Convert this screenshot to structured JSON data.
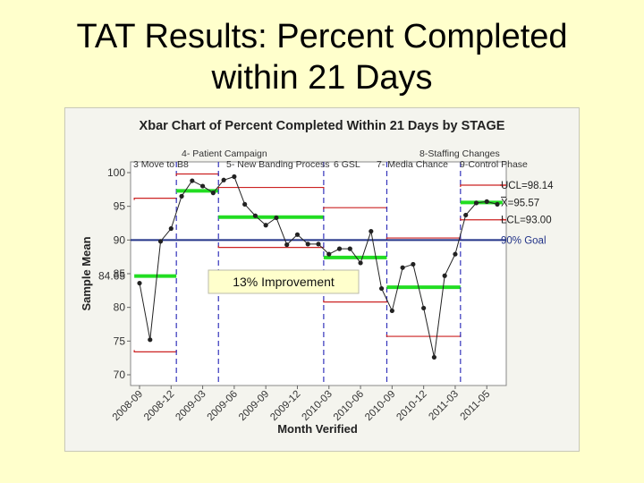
{
  "slide": {
    "title_line1": "TAT Results: Percent Completed",
    "title_line2": "within 21 Days"
  },
  "chart_data": {
    "type": "line",
    "title": "Xbar Chart of Percent Completed Within 21 Days by STAGE",
    "xlabel": "Month Verified",
    "ylabel": "Sample Mean",
    "ylim": [
      70,
      100
    ],
    "yticks": [
      70,
      75,
      80,
      85,
      90,
      95,
      100
    ],
    "xticks": [
      "2008-09",
      "2008-12",
      "2009-03",
      "2009-06",
      "2009-09",
      "2009-12",
      "2010-03",
      "2010-06",
      "2010-09",
      "2010-12",
      "2011-03",
      "2011-05"
    ],
    "series": [
      {
        "values": [
          [
            "2008-09",
            83.6
          ],
          [
            "2008-10",
            75.2
          ],
          [
            "2008-11",
            89.8
          ],
          [
            "2008-12",
            91.7
          ],
          [
            "2009-01",
            96.5
          ],
          [
            "2009-02",
            98.8
          ],
          [
            "2009-03",
            98.0
          ],
          [
            "2009-04",
            97.0
          ],
          [
            "2009-05",
            98.9
          ],
          [
            "2009-06",
            99.4
          ],
          [
            "2009-07",
            95.3
          ],
          [
            "2009-08",
            93.6
          ],
          [
            "2009-09",
            92.2
          ],
          [
            "2009-10",
            93.3
          ],
          [
            "2009-11",
            89.3
          ],
          [
            "2009-12",
            90.8
          ],
          [
            "2010-01",
            89.4
          ],
          [
            "2010-02",
            89.4
          ],
          [
            "2010-03",
            87.9
          ],
          [
            "2010-04",
            88.7
          ],
          [
            "2010-05",
            88.7
          ],
          [
            "2010-06",
            86.6
          ],
          [
            "2010-07",
            91.3
          ],
          [
            "2010-08",
            82.8
          ],
          [
            "2010-09",
            79.5
          ],
          [
            "2010-10",
            85.9
          ],
          [
            "2010-11",
            86.4
          ],
          [
            "2010-12",
            79.9
          ],
          [
            "2011-01",
            72.6
          ],
          [
            "2011-02",
            84.7
          ],
          [
            "2011-03",
            87.9
          ],
          [
            "2011-04",
            93.7
          ],
          [
            "2011-05",
            95.5
          ],
          [
            "2011-06",
            95.7
          ],
          [
            "2011-07",
            95.3
          ]
        ]
      }
    ],
    "stages": [
      {
        "label": "3 Move to B8",
        "start": "2008-09",
        "end": "2008-12",
        "mean": 84.65,
        "ucl": 96.2,
        "lcl": 73.4
      },
      {
        "label": "4- Patient Campaign",
        "start": "2009-01",
        "end": "2009-04",
        "mean": 97.3,
        "ucl": 99.8,
        "lcl": null
      },
      {
        "label": "5- New Banding Process",
        "start": "2009-05",
        "end": "2010-02",
        "mean": 93.4,
        "ucl": 97.8,
        "lcl": 88.9
      },
      {
        "label": "6 GSL",
        "start": "2010-03",
        "end": "2010-08",
        "mean": 87.4,
        "ucl": 94.8,
        "lcl": 80.8
      },
      {
        "label": "7- Media Chance",
        "start": "2010-09",
        "end": "2011-03",
        "mean": 83.0,
        "ucl": 90.3,
        "lcl": 75.7
      },
      {
        "label": "9-Control Phase",
        "start": "2011-04",
        "end": "2011-07",
        "mean": 95.57,
        "ucl": 98.14,
        "lcl": 93.0
      }
    ],
    "extra_stage_label": "8-Staffing Changes",
    "goal": {
      "value": 90,
      "label": "90% Goal"
    },
    "right_labels": {
      "ucl": "UCL=98.14",
      "mean": "X=95.57",
      "lcl": "LCL=93.00"
    },
    "left_mean_label": "84.65",
    "annotation": "13% Improvement"
  },
  "colors": {
    "limits": "#cc2222",
    "mean": "#22dd22",
    "goal": "#223388",
    "data": "#222222",
    "stage": "#3333bb"
  }
}
